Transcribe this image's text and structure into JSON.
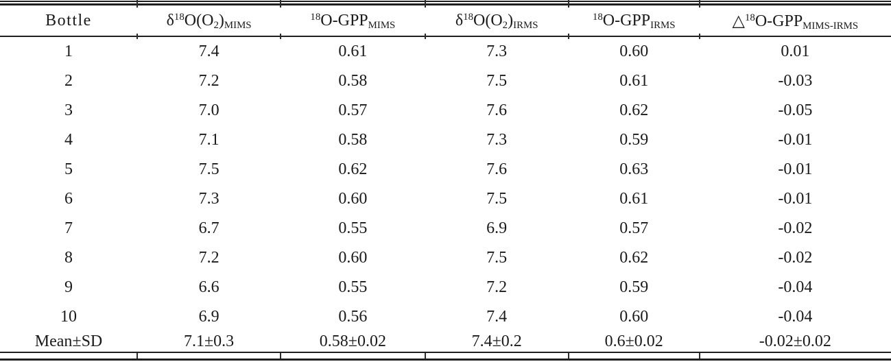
{
  "colors": {
    "background": "#ffffff",
    "text": "#1a1a1a",
    "rule": "#1f1f1f"
  },
  "table": {
    "columns": [
      {
        "id": "bottle",
        "label": "Bottle"
      },
      {
        "id": "d18O-O2-MIMS",
        "label": "δ^{18}O(O_{2})_{MIMS}"
      },
      {
        "id": "18O-GPP-MIMS",
        "label": "^{18}O-GPP_{MIMS}"
      },
      {
        "id": "d18O-O2-IRMS",
        "label": "δ^{18}O(O_{2})_{IRMS}"
      },
      {
        "id": "18O-GPP-IRMS",
        "label": "^{18}O-GPP_{IRMS}"
      },
      {
        "id": "delta-18O-GPP-MIMS-IRMS",
        "label": "△^{18}O-GPP_{MIMS-IRMS}"
      }
    ],
    "rows": [
      [
        "1",
        "7.4",
        "0.61",
        "7.3",
        "0.60",
        "0.01"
      ],
      [
        "2",
        "7.2",
        "0.58",
        "7.5",
        "0.61",
        "-0.03"
      ],
      [
        "3",
        "7.0",
        "0.57",
        "7.6",
        "0.62",
        "-0.05"
      ],
      [
        "4",
        "7.1",
        "0.58",
        "7.3",
        "0.59",
        "-0.01"
      ],
      [
        "5",
        "7.5",
        "0.62",
        "7.6",
        "0.63",
        "-0.01"
      ],
      [
        "6",
        "7.3",
        "0.60",
        "7.5",
        "0.61",
        "-0.01"
      ],
      [
        "7",
        "6.7",
        "0.55",
        "6.9",
        "0.57",
        "-0.02"
      ],
      [
        "8",
        "7.2",
        "0.60",
        "7.5",
        "0.62",
        "-0.02"
      ],
      [
        "9",
        "6.6",
        "0.55",
        "7.2",
        "0.59",
        "-0.04"
      ],
      [
        "10",
        "6.9",
        "0.56",
        "7.4",
        "0.60",
        "-0.04"
      ]
    ],
    "summary_row": [
      "Mean±SD",
      "7.1±0.3",
      "0.58±0.02",
      "7.4±0.2",
      "0.6±0.02",
      "-0.02±0.02"
    ]
  }
}
